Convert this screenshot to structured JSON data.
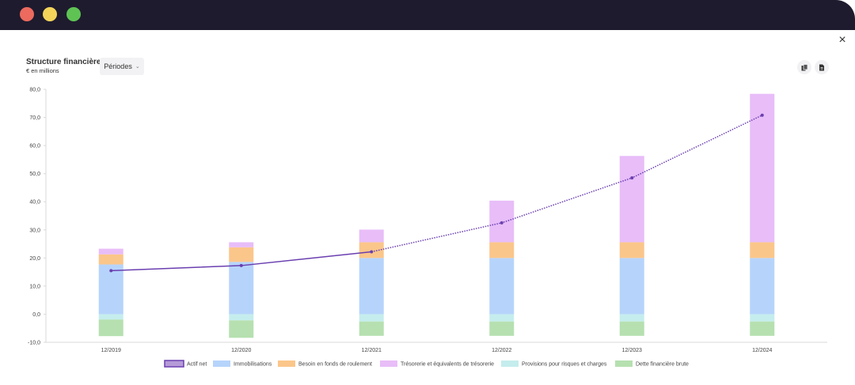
{
  "window": {
    "close_symbol": "×"
  },
  "header": {
    "title": "Structure financière",
    "subtitle": "€ en millions",
    "periods_label": "Périodes",
    "icons": [
      "copy-icon",
      "document-icon"
    ]
  },
  "colors": {
    "actif_net": "#6a3fb0",
    "immobilisations": "#b6d4fb",
    "bfr": "#fbc68a",
    "tresorerie": "#e8bdf8",
    "provisions": "#c5eded",
    "dette": "#b6e0b0"
  },
  "chart_data": {
    "type": "bar",
    "stacked": true,
    "title": "Structure financière",
    "subtitle": "€ en millions",
    "categories": [
      "12/2019",
      "12/2020",
      "12/2021",
      "12/2022",
      "12/2023",
      "12/2024"
    ],
    "ylim": [
      -10,
      80
    ],
    "yticks": [
      "80,0",
      "70,0",
      "60,0",
      "50,0",
      "40,0",
      "30,0",
      "20,0",
      "10,0",
      "0,0",
      "-10,0"
    ],
    "ytick_values": [
      80,
      70,
      60,
      50,
      40,
      30,
      20,
      10,
      0,
      -10
    ],
    "legend_position": "bottom",
    "series": [
      {
        "name": "Actif net",
        "kind": "line",
        "values": [
          15.5,
          17.3,
          22.2,
          32.5,
          48.5,
          70.8
        ]
      },
      {
        "name": "Immobilisations",
        "kind": "bar",
        "values": [
          17.7,
          18.6,
          20.0,
          20.0,
          20.0,
          20.0
        ]
      },
      {
        "name": "Besoin en fonds de roulement",
        "kind": "bar",
        "values": [
          3.6,
          5.2,
          5.6,
          5.6,
          5.6,
          5.6
        ]
      },
      {
        "name": "Trésorerie et équivalents de trésorerie",
        "kind": "bar",
        "values": [
          2.0,
          1.8,
          4.5,
          14.8,
          30.7,
          52.8
        ]
      },
      {
        "name": "Provisions pour risques et charges",
        "kind": "bar",
        "values": [
          -1.9,
          -2.2,
          -2.6,
          -2.6,
          -2.6,
          -2.6
        ]
      },
      {
        "name": "Dette financière brute",
        "kind": "bar",
        "values": [
          -5.9,
          -6.2,
          -5.1,
          -5.1,
          -5.1,
          -5.1
        ]
      }
    ]
  }
}
